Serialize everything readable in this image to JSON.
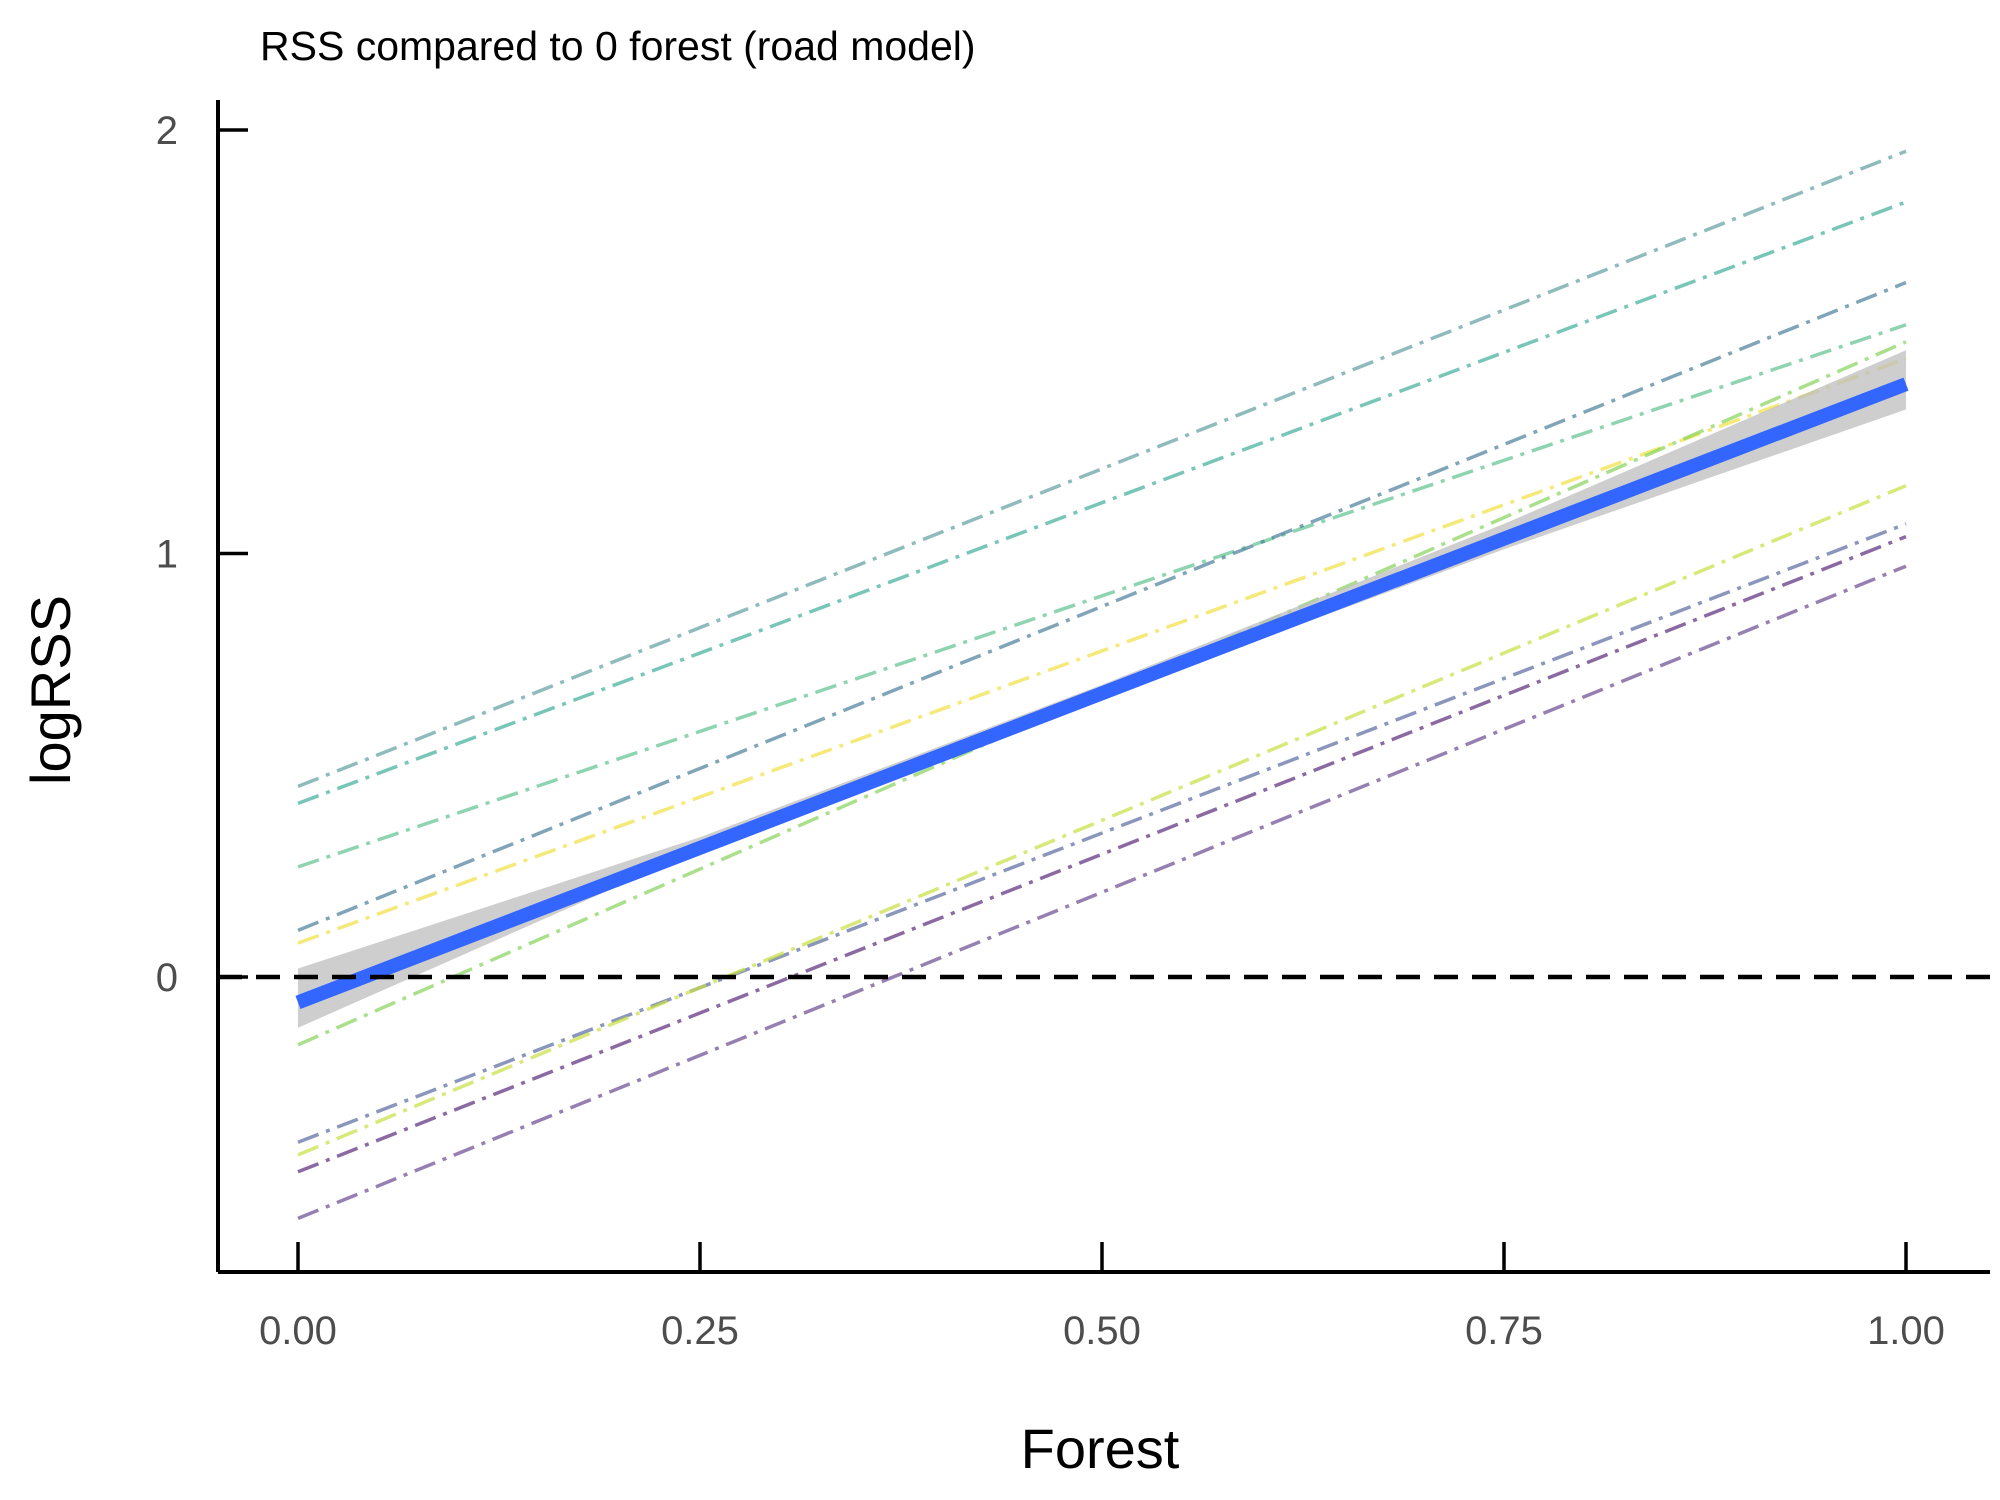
{
  "chart_data": {
    "type": "line",
    "title": "RSS compared to 0 forest (road model)",
    "xlabel": "Forest",
    "ylabel": "logRSS",
    "xlim": [
      -0.05,
      1.05
    ],
    "ylim": [
      -0.7,
      2.1
    ],
    "x_ticks": [
      "0.00",
      "0.25",
      "0.50",
      "0.75",
      "1.00"
    ],
    "y_ticks": [
      "0",
      "1",
      "2"
    ],
    "x_tick_values": [
      0,
      0.25,
      0.5,
      0.75,
      1.0
    ],
    "y_tick_values": [
      0,
      1,
      2
    ],
    "grid": false,
    "legend": "none",
    "reference_line": {
      "y": 0,
      "style": "dashed",
      "color": "#000000"
    },
    "series": [
      {
        "x": [
          0,
          1
        ],
        "y": [
          0.45,
          1.95
        ],
        "color": "#5f9ea0",
        "style": "dashdot"
      },
      {
        "x": [
          0,
          1
        ],
        "y": [
          0.41,
          1.83
        ],
        "color": "#3fae98",
        "style": "dashdot"
      },
      {
        "x": [
          0,
          1
        ],
        "y": [
          0.26,
          1.54
        ],
        "color": "#5ec28f",
        "style": "dashdot"
      },
      {
        "x": [
          0,
          1
        ],
        "y": [
          0.11,
          1.64
        ],
        "color": "#4a7f9a",
        "style": "dashdot"
      },
      {
        "x": [
          0,
          1
        ],
        "y": [
          0.08,
          1.46
        ],
        "color": "#f0e040",
        "style": "dashdot"
      },
      {
        "x": [
          0,
          1
        ],
        "y": [
          -0.16,
          1.5
        ],
        "color": "#86d35a",
        "style": "dashdot"
      },
      {
        "x": [
          0,
          1
        ],
        "y": [
          -0.39,
          1.07
        ],
        "color": "#5a6aa0",
        "style": "dashdot"
      },
      {
        "x": [
          0,
          1
        ],
        "y": [
          -0.42,
          1.16
        ],
        "color": "#c8e040",
        "style": "dashdot"
      },
      {
        "x": [
          0,
          1
        ],
        "y": [
          -0.46,
          1.04
        ],
        "color": "#5a2a7a",
        "style": "dashdot"
      },
      {
        "x": [
          0,
          1
        ],
        "y": [
          -0.57,
          0.97
        ],
        "color": "#6a4a90",
        "style": "dashdot"
      }
    ],
    "mean_line": {
      "x": [
        0,
        1
      ],
      "y": [
        -0.06,
        1.4
      ],
      "color": "#3366ff"
    },
    "confidence_band": {
      "x": [
        0,
        0.25,
        0.5,
        0.75,
        1.0
      ],
      "lower": [
        -0.12,
        0.3,
        0.66,
        1.01,
        1.34
      ],
      "upper": [
        0.02,
        0.33,
        0.69,
        1.07,
        1.48
      ],
      "color": "#bebebe"
    }
  }
}
